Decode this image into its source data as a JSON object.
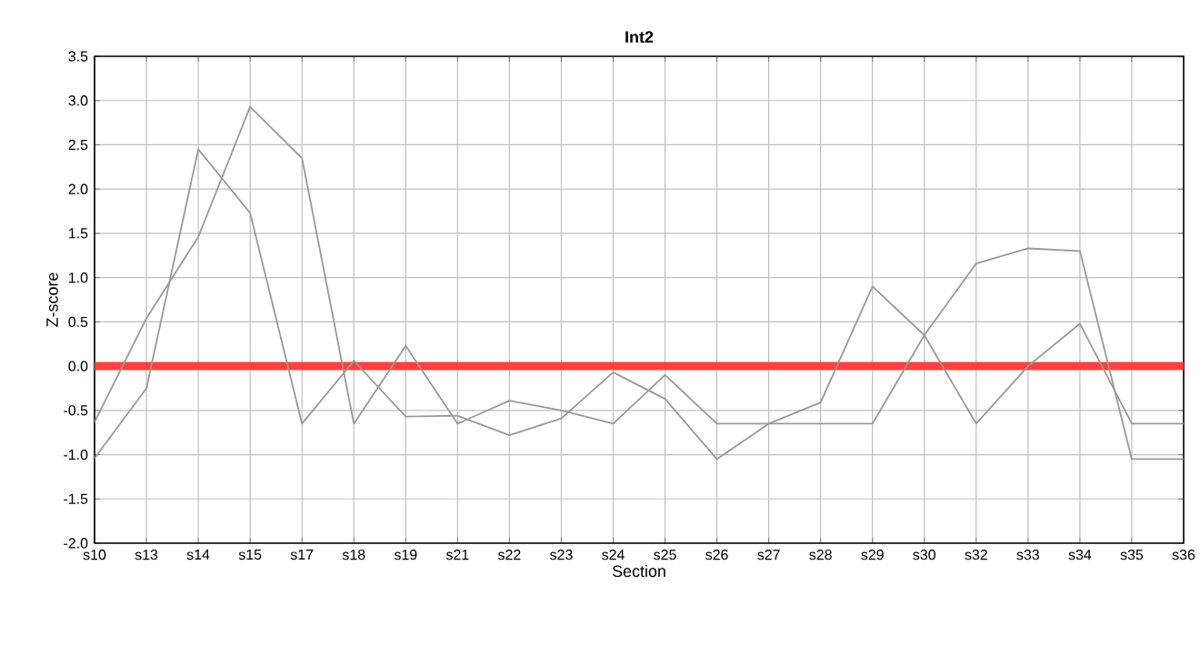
{
  "chart_data": {
    "type": "line",
    "title": "Int2",
    "xlabel": "Section",
    "ylabel": "Z-score",
    "categories": [
      "s10",
      "s13",
      "s14",
      "s15",
      "s17",
      "s18",
      "s19",
      "s21",
      "s22",
      "s23",
      "s24",
      "s25",
      "s26",
      "s27",
      "s28",
      "s29",
      "s30",
      "s32",
      "s33",
      "s34",
      "s35",
      "s36"
    ],
    "series": [
      {
        "color": "#999999",
        "values": [
          -0.63,
          0.54,
          1.46,
          2.93,
          2.35,
          -0.65,
          0.23,
          -0.65,
          -0.39,
          -0.5,
          -0.65,
          -0.1,
          -0.65,
          -0.65,
          -0.41,
          0.9,
          0.35,
          -0.65,
          0,
          0.48,
          -0.65,
          -0.65
        ]
      },
      {
        "color": "#999999",
        "values": [
          -1.04,
          -0.25,
          2.45,
          1.73,
          -0.65,
          0.06,
          -0.57,
          -0.56,
          -0.78,
          -0.59,
          -0.07,
          -0.37,
          -1.05,
          -0.65,
          -0.65,
          -0.65,
          0.35,
          1.16,
          1.33,
          1.3,
          -1.05,
          -1.05
        ]
      }
    ],
    "ylim": [
      -2,
      3.5
    ],
    "yticks": [
      {
        "value": -2,
        "label": "-2.0"
      },
      -1.5,
      {
        "value": -1,
        "label": "-1.0"
      },
      -0.5,
      {
        "value": 0,
        "label": "0.0"
      },
      0.5,
      {
        "value": 1,
        "label": "1.0"
      },
      1.5,
      {
        "value": 2,
        "label": "2.0"
      },
      2.5,
      {
        "value": 3,
        "label": "3.0"
      },
      3.5
    ],
    "ref_lines": [
      {
        "axis": "y",
        "value": 0,
        "color": "#ff4040"
      }
    ],
    "grid": true,
    "marker": "none",
    "line_style": "solid"
  }
}
